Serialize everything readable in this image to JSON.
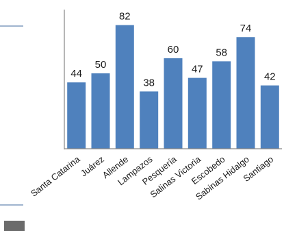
{
  "chart_data": {
    "type": "bar",
    "categories": [
      "Santa Catarina",
      "Juárez",
      "Allende",
      "Lampazos",
      "Pesquería",
      "Salinas Victoria",
      "Escobedo",
      "Sabinas Hidalgo",
      "Santiago"
    ],
    "values": [
      44,
      50,
      82,
      38,
      60,
      47,
      58,
      74,
      42
    ],
    "data_labels": [
      "44",
      "50",
      "82",
      "38",
      "60",
      "47",
      "58",
      "74",
      "42"
    ],
    "title": "",
    "xlabel": "",
    "ylabel": "",
    "ylim": [
      0,
      100
    ],
    "grid": false,
    "legend": "none",
    "colors": {
      "bar": "#4f81bd",
      "axis": "#868686",
      "decoration": "#9fb4cf",
      "block": "#6b6b6b"
    }
  }
}
